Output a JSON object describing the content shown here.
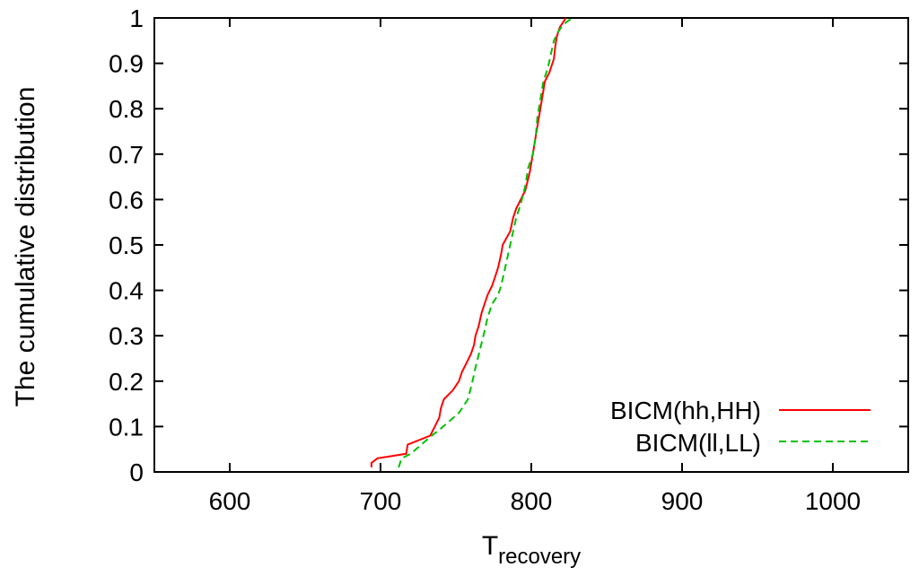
{
  "chart_data": {
    "type": "line",
    "title": "",
    "xlabel": "T",
    "xlabel_sub": "recovery",
    "ylabel": "The cumulative distribution",
    "xlim": [
      550,
      1050
    ],
    "ylim": [
      0,
      1
    ],
    "x_ticks": [
      600,
      700,
      800,
      900,
      1000
    ],
    "y_ticks": [
      0,
      0.1,
      0.2,
      0.3,
      0.4,
      0.5,
      0.6,
      0.7,
      0.8,
      0.9,
      1
    ],
    "x_tick_labels": [
      "600",
      "700",
      "800",
      "900",
      "1000"
    ],
    "y_tick_labels": [
      "0",
      "0.1",
      "0.2",
      "0.3",
      "0.4",
      "0.5",
      "0.6",
      "0.7",
      "0.8",
      "0.9",
      "1"
    ],
    "grid": false,
    "legend_position": "bottom-right",
    "series": [
      {
        "name": "BICM(hh,HH)",
        "color": "#ff0000",
        "dash": "solid",
        "points": [
          [
            694,
            0.01
          ],
          [
            694,
            0.02
          ],
          [
            698,
            0.03
          ],
          [
            717,
            0.04
          ],
          [
            718,
            0.06
          ],
          [
            733,
            0.08
          ],
          [
            736,
            0.1
          ],
          [
            739,
            0.12
          ],
          [
            740,
            0.14
          ],
          [
            742,
            0.16
          ],
          [
            748,
            0.18
          ],
          [
            752,
            0.2
          ],
          [
            754,
            0.22
          ],
          [
            757,
            0.24
          ],
          [
            760,
            0.26
          ],
          [
            762,
            0.28
          ],
          [
            763,
            0.3
          ],
          [
            765,
            0.32
          ],
          [
            767,
            0.35
          ],
          [
            769,
            0.37
          ],
          [
            771,
            0.39
          ],
          [
            774,
            0.41
          ],
          [
            776,
            0.43
          ],
          [
            778,
            0.45
          ],
          [
            780,
            0.48
          ],
          [
            781,
            0.5
          ],
          [
            786,
            0.53
          ],
          [
            788,
            0.56
          ],
          [
            790,
            0.58
          ],
          [
            793,
            0.6
          ],
          [
            796,
            0.62
          ],
          [
            799,
            0.66
          ],
          [
            801,
            0.7
          ],
          [
            803,
            0.74
          ],
          [
            805,
            0.78
          ],
          [
            807,
            0.82
          ],
          [
            809,
            0.86
          ],
          [
            812,
            0.88
          ],
          [
            815,
            0.91
          ],
          [
            816,
            0.94
          ],
          [
            817,
            0.96
          ],
          [
            819,
            0.98
          ],
          [
            821,
            0.99
          ],
          [
            823,
            1.0
          ]
        ]
      },
      {
        "name": "BICM(ll,LL)",
        "color": "#00c000",
        "dash": "dashed",
        "points": [
          [
            712,
            0.01
          ],
          [
            714,
            0.03
          ],
          [
            720,
            0.04
          ],
          [
            727,
            0.06
          ],
          [
            734,
            0.08
          ],
          [
            738,
            0.09
          ],
          [
            745,
            0.11
          ],
          [
            752,
            0.13
          ],
          [
            758,
            0.16
          ],
          [
            761,
            0.2
          ],
          [
            763,
            0.23
          ],
          [
            766,
            0.27
          ],
          [
            769,
            0.31
          ],
          [
            771,
            0.34
          ],
          [
            774,
            0.37
          ],
          [
            778,
            0.39
          ],
          [
            780,
            0.41
          ],
          [
            782,
            0.44
          ],
          [
            784,
            0.47
          ],
          [
            786,
            0.5
          ],
          [
            788,
            0.53
          ],
          [
            790,
            0.56
          ],
          [
            793,
            0.59
          ],
          [
            796,
            0.63
          ],
          [
            798,
            0.67
          ],
          [
            801,
            0.7
          ],
          [
            803,
            0.74
          ],
          [
            804,
            0.78
          ],
          [
            806,
            0.82
          ],
          [
            808,
            0.86
          ],
          [
            811,
            0.89
          ],
          [
            813,
            0.92
          ],
          [
            815,
            0.95
          ],
          [
            818,
            0.97
          ],
          [
            820,
            0.98
          ],
          [
            823,
            0.99
          ],
          [
            827,
            1.0
          ]
        ]
      }
    ]
  }
}
